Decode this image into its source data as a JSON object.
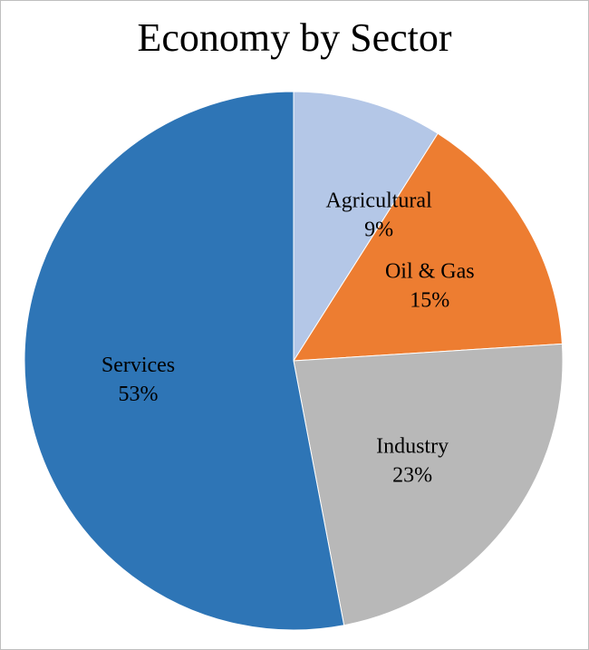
{
  "chart_data": {
    "type": "pie",
    "title": "Economy by Sector",
    "start_angle_deg": 0,
    "direction": "clockwise",
    "legend": "none",
    "slices": [
      {
        "name": "Agricultural",
        "value": 9,
        "label": "9%",
        "color": "#b4c7e7"
      },
      {
        "name": "Oil & Gas",
        "value": 15,
        "label": "15%",
        "color": "#ed7d31"
      },
      {
        "name": "Industry",
        "value": 23,
        "label": "23%",
        "color": "#b8b8b8"
      },
      {
        "name": "Services",
        "value": 53,
        "label": "53%",
        "color": "#2e75b6"
      }
    ]
  }
}
